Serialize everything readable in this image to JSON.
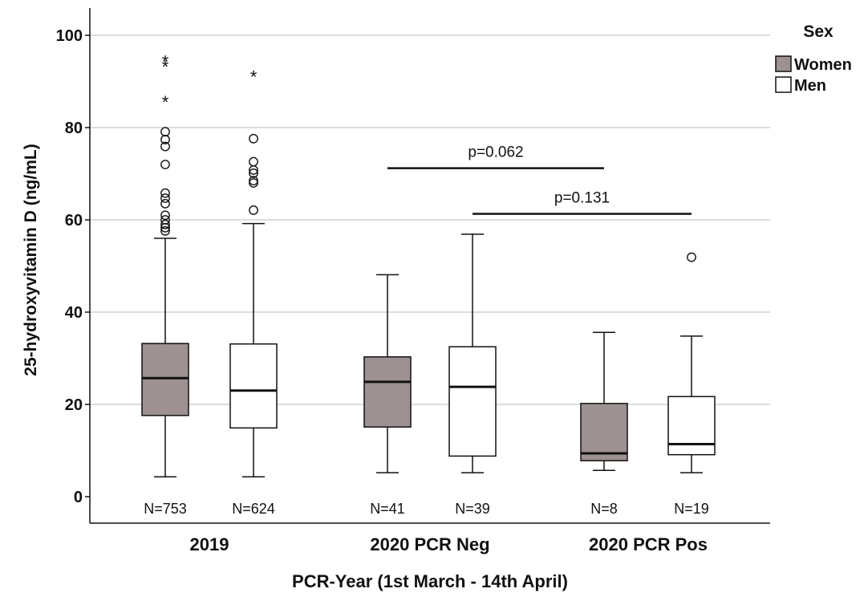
{
  "chart_data": {
    "type": "box",
    "xlabel": "PCR-Year (1st March - 14th April)",
    "ylabel": "25-hydroxyvitamin D (ng/mL)",
    "ylim": [
      0,
      100
    ],
    "y_ticks": [
      0,
      20,
      40,
      60,
      80,
      100
    ],
    "grid": "horizontal",
    "legend": {
      "title": "Sex",
      "position": "top-right",
      "items": [
        {
          "label": "Women",
          "color": "#9e9191"
        },
        {
          "label": "Men",
          "color": "#ffffff"
        }
      ]
    },
    "groups": [
      {
        "label": "2019"
      },
      {
        "label": "2020 PCR Neg"
      },
      {
        "label": "2020 PCR Pos"
      }
    ],
    "boxes": [
      {
        "group": 0,
        "sex": "Women",
        "n_label": "N=753",
        "min": 4.3,
        "q1": 17.6,
        "median": 25.7,
        "q3": 33.2,
        "max": 56.0,
        "outliers": [
          57.6,
          58.3,
          59.0,
          60.0,
          61.0,
          63.5,
          64.7,
          65.8,
          72.0,
          75.9,
          77.4,
          79.1
        ],
        "extremes": [
          93.6,
          94.7,
          85.9
        ]
      },
      {
        "group": 0,
        "sex": "Men",
        "n_label": "N=624",
        "min": 4.3,
        "q1": 14.9,
        "median": 23.0,
        "q3": 33.1,
        "max": 59.2,
        "outliers": [
          62.1,
          68.0,
          68.5,
          70.1,
          70.8,
          72.6,
          77.6
        ],
        "extremes": [
          91.4
        ]
      },
      {
        "group": 1,
        "sex": "Women",
        "n_label": "N=41",
        "min": 5.2,
        "q1": 15.1,
        "median": 24.9,
        "q3": 30.3,
        "max": 48.1,
        "outliers": [],
        "extremes": []
      },
      {
        "group": 1,
        "sex": "Men",
        "n_label": "N=39",
        "min": 5.2,
        "q1": 8.8,
        "median": 23.8,
        "q3": 32.5,
        "max": 56.9,
        "outliers": [],
        "extremes": []
      },
      {
        "group": 2,
        "sex": "Women",
        "n_label": "N=8",
        "min": 5.7,
        "q1": 7.8,
        "median": 9.4,
        "q3": 20.2,
        "max": 35.6,
        "outliers": [],
        "extremes": []
      },
      {
        "group": 2,
        "sex": "Men",
        "n_label": "N=19",
        "min": 5.2,
        "q1": 9.1,
        "median": 11.4,
        "q3": 21.7,
        "max": 34.8,
        "outliers": [
          51.9
        ],
        "extremes": []
      }
    ],
    "annotations": [
      {
        "text": "p=0.062",
        "from_box": 2,
        "to_box": 4,
        "y": 71.2
      },
      {
        "text": "p=0.131",
        "from_box": 3,
        "to_box": 5,
        "y": 61.3
      }
    ]
  },
  "colors": {
    "women_fill": "#9e9191",
    "men_fill": "#ffffff",
    "grid": "#c8c8c8",
    "ink": "#111111"
  }
}
